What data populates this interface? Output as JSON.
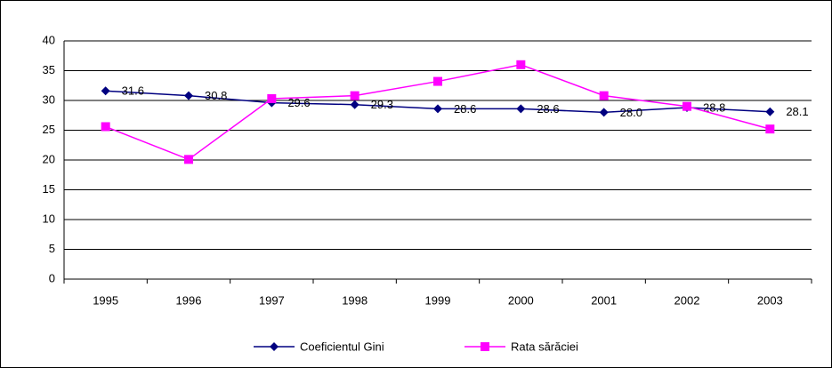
{
  "chart_data": {
    "type": "line",
    "categories": [
      "1995",
      "1996",
      "1997",
      "1998",
      "1999",
      "2000",
      "2001",
      "2002",
      "2003"
    ],
    "series": [
      {
        "name": "Coeficientul Gini",
        "color": "#000080",
        "marker": "diamond",
        "values": [
          31.6,
          30.8,
          29.6,
          29.3,
          28.6,
          28.6,
          28.0,
          28.8,
          28.1
        ],
        "value_labels": [
          "31.6",
          "30.8",
          "29.6",
          "29.3",
          "28.6",
          "28.6",
          "28.0",
          "28.8",
          "28.1"
        ]
      },
      {
        "name": "Rata sărăciei",
        "color": "#ff00ff",
        "marker": "square",
        "values": [
          25.6,
          20.1,
          30.3,
          30.8,
          33.2,
          36.0,
          30.8,
          29.0,
          25.2
        ]
      }
    ],
    "ylim": [
      0,
      40
    ],
    "yticks": [
      0,
      5,
      10,
      15,
      20,
      25,
      30,
      35,
      40
    ],
    "grid": true,
    "legend": "bottom"
  }
}
